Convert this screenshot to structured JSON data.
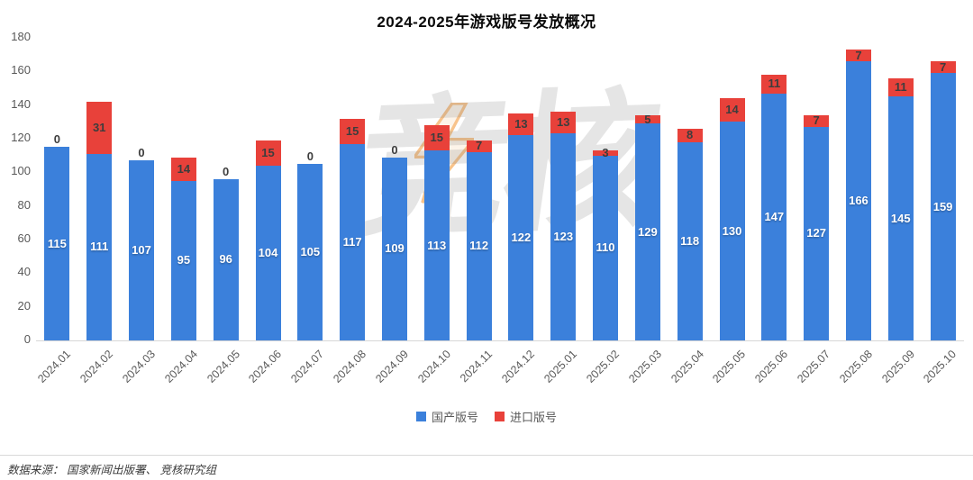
{
  "title": "2024-2025年游戏版号发放概况",
  "watermark": {
    "text": "竞核",
    "bolt_icon": "lightning-bolt"
  },
  "legend": {
    "items": [
      "国产版号",
      "进口版号"
    ]
  },
  "footer": {
    "source": "数据来源：  国家新闻出版署、 竞核研究组"
  },
  "colors": {
    "domestic_blue": "#3b80db",
    "imported_red": "#e8413a",
    "axis_text": "#595959",
    "axis_line": "#d6d6d6"
  },
  "chart_data": {
    "type": "bar",
    "stacked": true,
    "title": "2024-2025年游戏版号发放概况",
    "xlabel": "",
    "ylabel": "",
    "ylim": [
      0,
      180
    ],
    "yticks": [
      0,
      20,
      40,
      60,
      80,
      100,
      120,
      140,
      160,
      180
    ],
    "grid": false,
    "legend_position": "bottom",
    "categories": [
      "2024.01",
      "2024.02",
      "2024.03",
      "2024.04",
      "2024.05",
      "2024.06",
      "2024.07",
      "2024.08",
      "2024.09",
      "2024.10",
      "2024.11",
      "2024.12",
      "2025.01",
      "2025.02",
      "2025.03",
      "2025.04",
      "2025.05",
      "2025.06",
      "2025.07",
      "2025.08",
      "2025.09",
      "2025.10"
    ],
    "series": [
      {
        "name": "国产版号",
        "color": "#3b80db",
        "values": [
          115,
          111,
          107,
          95,
          96,
          104,
          105,
          117,
          109,
          113,
          112,
          122,
          123,
          110,
          129,
          118,
          130,
          147,
          127,
          166,
          145,
          159
        ]
      },
      {
        "name": "进口版号",
        "color": "#e8413a",
        "values": [
          0,
          31,
          0,
          14,
          0,
          15,
          0,
          15,
          0,
          15,
          7,
          13,
          13,
          3,
          5,
          8,
          14,
          11,
          7,
          7,
          11,
          7
        ]
      }
    ]
  }
}
